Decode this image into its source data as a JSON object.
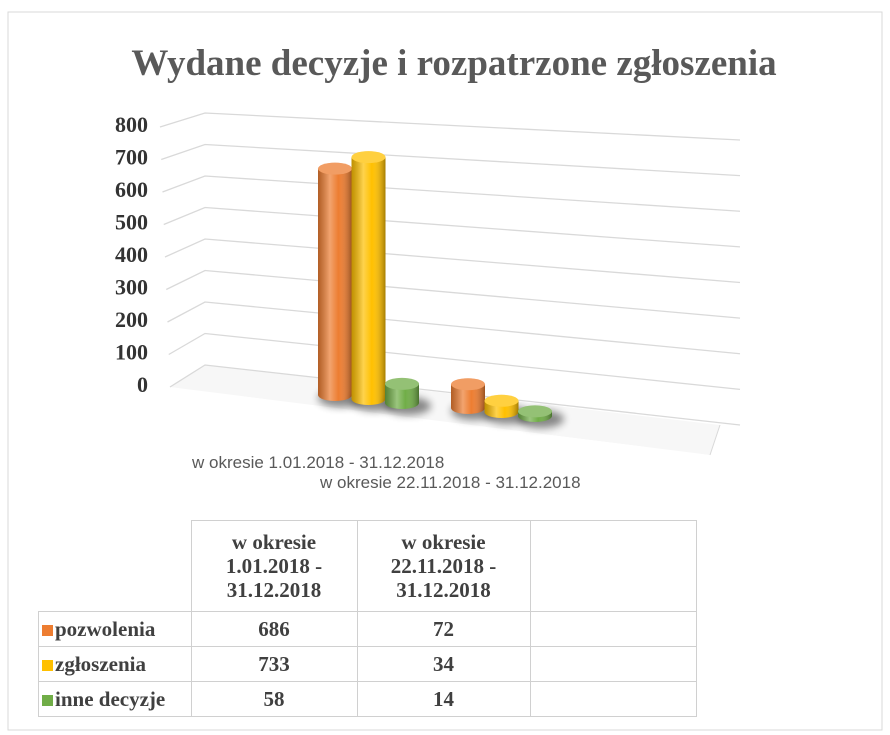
{
  "chart_data": {
    "type": "bar3d",
    "title": "Wydane decyzje i rozpatrzone zgłoszenia",
    "categories": [
      "w okresie 1.01.2018 - 31.12.2018",
      "w okresie 22.11.2018 - 31.12.2018"
    ],
    "series": [
      {
        "name": "pozwolenia",
        "color": "#ED7D31",
        "values": [
          686,
          72
        ]
      },
      {
        "name": "zgłoszenia",
        "color": "#FFC000",
        "values": [
          733,
          34
        ]
      },
      {
        "name": "inne decyzje",
        "color": "#70AD47",
        "values": [
          58,
          14
        ]
      }
    ],
    "ylim": [
      0,
      800
    ],
    "yticks": [
      0,
      100,
      200,
      300,
      400,
      500,
      600,
      700,
      800
    ],
    "grid": true
  }
}
